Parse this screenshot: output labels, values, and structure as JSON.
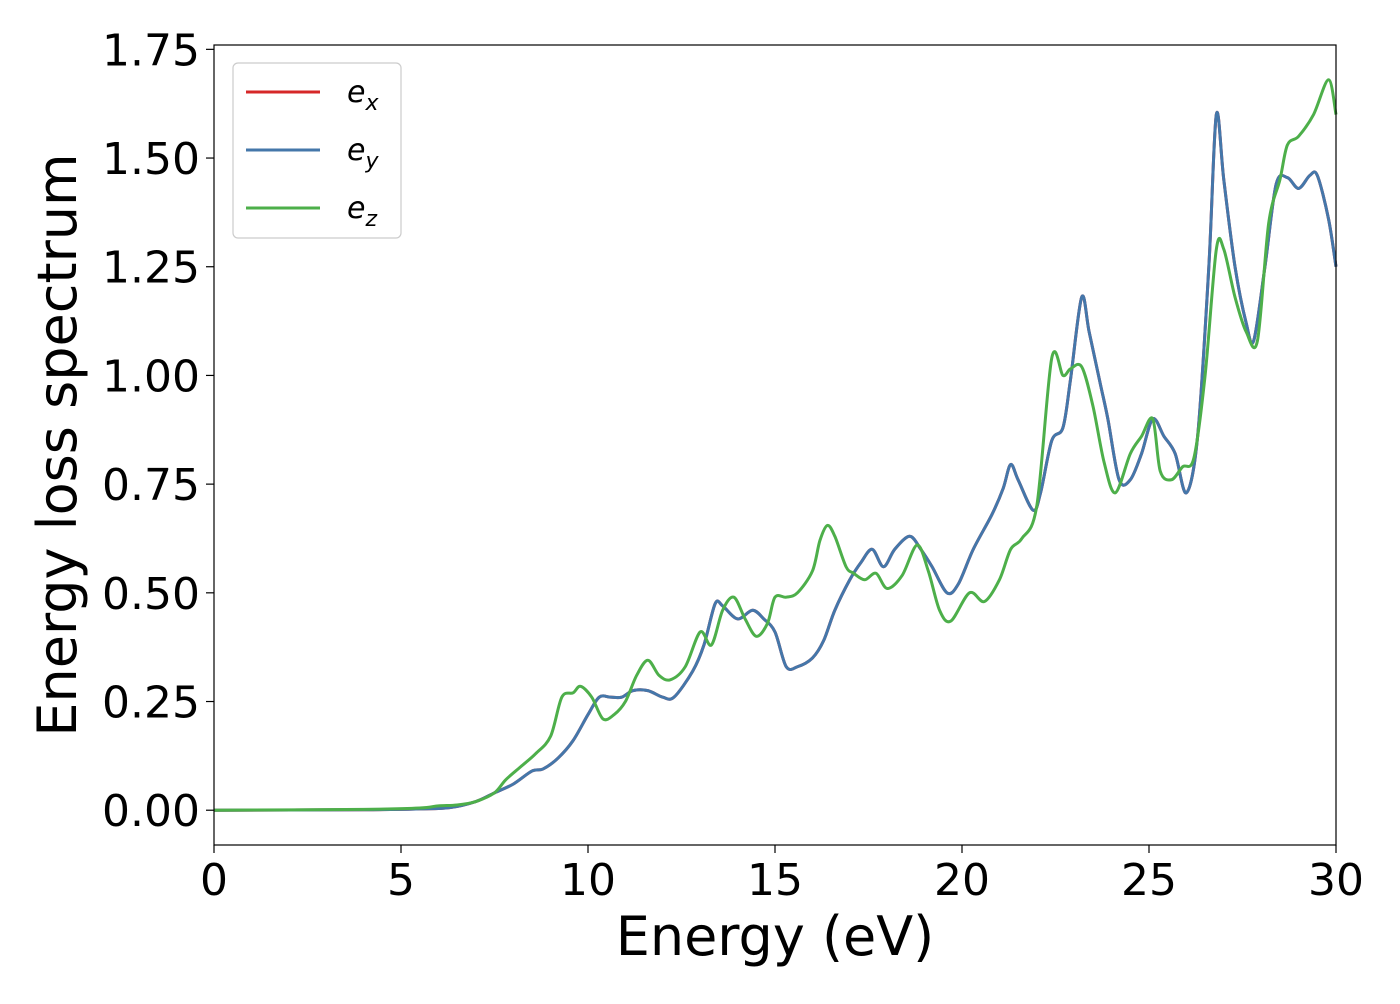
{
  "chart_data": {
    "type": "line",
    "title": "",
    "xlabel": "Energy (eV)",
    "ylabel": "Energy loss spectrum",
    "xlim": [
      0,
      30
    ],
    "ylim": [
      -0.08,
      1.76
    ],
    "xticks": [
      0,
      5,
      10,
      15,
      20,
      25,
      30
    ],
    "xtick_labels": [
      "0",
      "5",
      "10",
      "15",
      "20",
      "25",
      "30"
    ],
    "yticks": [
      0.0,
      0.25,
      0.5,
      0.75,
      1.0,
      1.25,
      1.5,
      1.75
    ],
    "ytick_labels": [
      "0.00",
      "0.25",
      "0.50",
      "0.75",
      "1.00",
      "1.25",
      "1.50",
      "1.75"
    ],
    "grid": false,
    "legend_position": "top-left",
    "series": [
      {
        "name": "ex",
        "base": "e",
        "sub": "x",
        "color": "#d62728",
        "points": [
          [
            0,
            0
          ],
          [
            4,
            0.001
          ],
          [
            5.5,
            0.003
          ],
          [
            6.3,
            0.006
          ],
          [
            7,
            0.02
          ],
          [
            7.5,
            0.04
          ],
          [
            8,
            0.06
          ],
          [
            8.5,
            0.09
          ],
          [
            8.8,
            0.095
          ],
          [
            9.2,
            0.12
          ],
          [
            9.6,
            0.16
          ],
          [
            10,
            0.22
          ],
          [
            10.3,
            0.26
          ],
          [
            10.6,
            0.26
          ],
          [
            10.9,
            0.26
          ],
          [
            11.2,
            0.275
          ],
          [
            11.6,
            0.275
          ],
          [
            12,
            0.26
          ],
          [
            12.3,
            0.26
          ],
          [
            12.8,
            0.32
          ],
          [
            13.1,
            0.38
          ],
          [
            13.4,
            0.475
          ],
          [
            13.6,
            0.47
          ],
          [
            14,
            0.44
          ],
          [
            14.4,
            0.46
          ],
          [
            14.7,
            0.44
          ],
          [
            15,
            0.41
          ],
          [
            15.3,
            0.33
          ],
          [
            15.6,
            0.33
          ],
          [
            16,
            0.35
          ],
          [
            16.3,
            0.39
          ],
          [
            16.6,
            0.46
          ],
          [
            17,
            0.53
          ],
          [
            17.3,
            0.57
          ],
          [
            17.6,
            0.6
          ],
          [
            17.9,
            0.56
          ],
          [
            18.2,
            0.6
          ],
          [
            18.6,
            0.63
          ],
          [
            18.9,
            0.6
          ],
          [
            19.2,
            0.56
          ],
          [
            19.6,
            0.5
          ],
          [
            19.9,
            0.52
          ],
          [
            20.3,
            0.6
          ],
          [
            20.8,
            0.68
          ],
          [
            21.1,
            0.74
          ],
          [
            21.3,
            0.795
          ],
          [
            21.5,
            0.76
          ],
          [
            21.9,
            0.69
          ],
          [
            22.1,
            0.73
          ],
          [
            22.4,
            0.85
          ],
          [
            22.7,
            0.88
          ],
          [
            22.9,
            0.99
          ],
          [
            23.2,
            1.18
          ],
          [
            23.4,
            1.1
          ],
          [
            23.7,
            0.98
          ],
          [
            23.9,
            0.9
          ],
          [
            24.2,
            0.76
          ],
          [
            24.5,
            0.76
          ],
          [
            24.8,
            0.82
          ],
          [
            25.1,
            0.9
          ],
          [
            25.4,
            0.86
          ],
          [
            25.7,
            0.82
          ],
          [
            26,
            0.73
          ],
          [
            26.3,
            0.86
          ],
          [
            26.6,
            1.25
          ],
          [
            26.8,
            1.6
          ],
          [
            27,
            1.45
          ],
          [
            27.3,
            1.25
          ],
          [
            27.6,
            1.12
          ],
          [
            27.8,
            1.08
          ],
          [
            28.1,
            1.25
          ],
          [
            28.4,
            1.44
          ],
          [
            28.7,
            1.455
          ],
          [
            29,
            1.43
          ],
          [
            29.3,
            1.46
          ],
          [
            29.5,
            1.46
          ],
          [
            29.8,
            1.36
          ],
          [
            30,
            1.25
          ]
        ]
      },
      {
        "name": "ey",
        "base": "e",
        "sub": "y",
        "color": "#4477aa",
        "points": [
          [
            0,
            0
          ],
          [
            4,
            0.001
          ],
          [
            5.5,
            0.003
          ],
          [
            6.3,
            0.006
          ],
          [
            7,
            0.02
          ],
          [
            7.5,
            0.04
          ],
          [
            8,
            0.06
          ],
          [
            8.5,
            0.09
          ],
          [
            8.8,
            0.095
          ],
          [
            9.2,
            0.12
          ],
          [
            9.6,
            0.16
          ],
          [
            10,
            0.22
          ],
          [
            10.3,
            0.26
          ],
          [
            10.6,
            0.26
          ],
          [
            10.9,
            0.26
          ],
          [
            11.2,
            0.275
          ],
          [
            11.6,
            0.275
          ],
          [
            12,
            0.26
          ],
          [
            12.3,
            0.26
          ],
          [
            12.8,
            0.32
          ],
          [
            13.1,
            0.38
          ],
          [
            13.4,
            0.475
          ],
          [
            13.6,
            0.47
          ],
          [
            14,
            0.44
          ],
          [
            14.4,
            0.46
          ],
          [
            14.7,
            0.44
          ],
          [
            15,
            0.41
          ],
          [
            15.3,
            0.33
          ],
          [
            15.6,
            0.33
          ],
          [
            16,
            0.35
          ],
          [
            16.3,
            0.39
          ],
          [
            16.6,
            0.46
          ],
          [
            17,
            0.53
          ],
          [
            17.3,
            0.57
          ],
          [
            17.6,
            0.6
          ],
          [
            17.9,
            0.56
          ],
          [
            18.2,
            0.6
          ],
          [
            18.6,
            0.63
          ],
          [
            18.9,
            0.6
          ],
          [
            19.2,
            0.56
          ],
          [
            19.6,
            0.5
          ],
          [
            19.9,
            0.52
          ],
          [
            20.3,
            0.6
          ],
          [
            20.8,
            0.68
          ],
          [
            21.1,
            0.74
          ],
          [
            21.3,
            0.795
          ],
          [
            21.5,
            0.76
          ],
          [
            21.9,
            0.69
          ],
          [
            22.1,
            0.73
          ],
          [
            22.4,
            0.85
          ],
          [
            22.7,
            0.88
          ],
          [
            22.9,
            0.99
          ],
          [
            23.2,
            1.18
          ],
          [
            23.4,
            1.1
          ],
          [
            23.7,
            0.98
          ],
          [
            23.9,
            0.9
          ],
          [
            24.2,
            0.76
          ],
          [
            24.5,
            0.76
          ],
          [
            24.8,
            0.82
          ],
          [
            25.1,
            0.9
          ],
          [
            25.4,
            0.86
          ],
          [
            25.7,
            0.82
          ],
          [
            26,
            0.73
          ],
          [
            26.3,
            0.86
          ],
          [
            26.6,
            1.25
          ],
          [
            26.8,
            1.6
          ],
          [
            27,
            1.45
          ],
          [
            27.3,
            1.25
          ],
          [
            27.6,
            1.12
          ],
          [
            27.8,
            1.08
          ],
          [
            28.1,
            1.25
          ],
          [
            28.4,
            1.44
          ],
          [
            28.7,
            1.455
          ],
          [
            29,
            1.43
          ],
          [
            29.3,
            1.46
          ],
          [
            29.5,
            1.46
          ],
          [
            29.8,
            1.36
          ],
          [
            30,
            1.25
          ]
        ]
      },
      {
        "name": "ez",
        "base": "e",
        "sub": "z",
        "color": "#4daf4a",
        "points": [
          [
            0,
            0
          ],
          [
            4,
            0.002
          ],
          [
            5.5,
            0.005
          ],
          [
            6,
            0.01
          ],
          [
            6.5,
            0.012
          ],
          [
            7,
            0.02
          ],
          [
            7.5,
            0.04
          ],
          [
            7.8,
            0.07
          ],
          [
            8.2,
            0.1
          ],
          [
            8.6,
            0.13
          ],
          [
            9,
            0.17
          ],
          [
            9.3,
            0.26
          ],
          [
            9.6,
            0.27
          ],
          [
            9.8,
            0.285
          ],
          [
            10.1,
            0.26
          ],
          [
            10.4,
            0.21
          ],
          [
            10.7,
            0.22
          ],
          [
            11,
            0.25
          ],
          [
            11.3,
            0.31
          ],
          [
            11.6,
            0.345
          ],
          [
            11.9,
            0.31
          ],
          [
            12.2,
            0.3
          ],
          [
            12.6,
            0.33
          ],
          [
            13,
            0.41
          ],
          [
            13.3,
            0.38
          ],
          [
            13.6,
            0.46
          ],
          [
            13.9,
            0.49
          ],
          [
            14.2,
            0.44
          ],
          [
            14.5,
            0.4
          ],
          [
            14.8,
            0.43
          ],
          [
            15,
            0.49
          ],
          [
            15.3,
            0.49
          ],
          [
            15.6,
            0.5
          ],
          [
            16,
            0.55
          ],
          [
            16.2,
            0.62
          ],
          [
            16.4,
            0.655
          ],
          [
            16.6,
            0.63
          ],
          [
            16.9,
            0.56
          ],
          [
            17.1,
            0.545
          ],
          [
            17.4,
            0.53
          ],
          [
            17.7,
            0.545
          ],
          [
            18,
            0.51
          ],
          [
            18.4,
            0.54
          ],
          [
            18.8,
            0.61
          ],
          [
            19.1,
            0.55
          ],
          [
            19.4,
            0.46
          ],
          [
            19.7,
            0.435
          ],
          [
            20.2,
            0.5
          ],
          [
            20.6,
            0.48
          ],
          [
            21,
            0.53
          ],
          [
            21.3,
            0.6
          ],
          [
            21.6,
            0.625
          ],
          [
            22,
            0.7
          ],
          [
            22.4,
            1.04
          ],
          [
            22.7,
            1.0
          ],
          [
            22.9,
            1.015
          ],
          [
            23.2,
            1.02
          ],
          [
            23.5,
            0.93
          ],
          [
            23.8,
            0.8
          ],
          [
            24.1,
            0.73
          ],
          [
            24.5,
            0.82
          ],
          [
            24.8,
            0.86
          ],
          [
            25.1,
            0.9
          ],
          [
            25.3,
            0.78
          ],
          [
            25.6,
            0.76
          ],
          [
            25.9,
            0.79
          ],
          [
            26.2,
            0.81
          ],
          [
            26.5,
            1.0
          ],
          [
            26.8,
            1.29
          ],
          [
            27,
            1.29
          ],
          [
            27.3,
            1.18
          ],
          [
            27.6,
            1.1
          ],
          [
            27.9,
            1.08
          ],
          [
            28.2,
            1.35
          ],
          [
            28.5,
            1.45
          ],
          [
            28.7,
            1.53
          ],
          [
            29,
            1.55
          ],
          [
            29.4,
            1.6
          ],
          [
            29.8,
            1.68
          ],
          [
            30,
            1.6
          ]
        ]
      }
    ]
  }
}
